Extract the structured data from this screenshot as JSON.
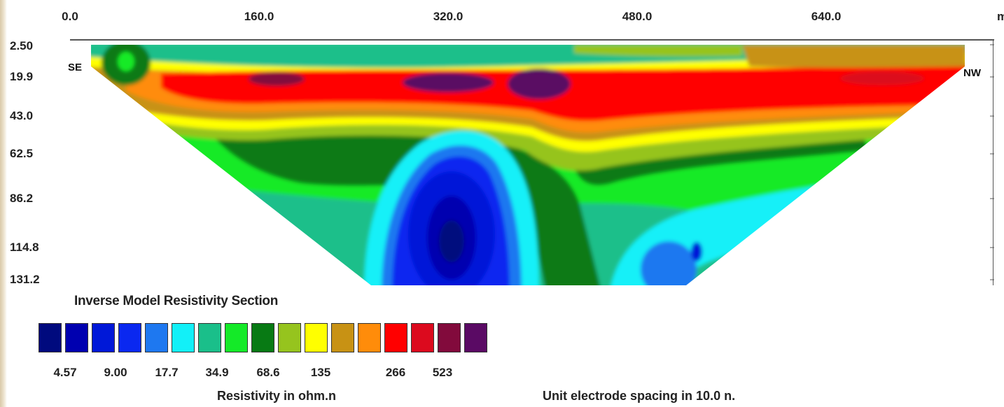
{
  "chart_data": {
    "type": "heatmap",
    "title": "Inverse Model Resistivity Section",
    "x_unit": "m",
    "x_ticks": [
      "0.0",
      "160.0",
      "320.0",
      "480.0",
      "640.0"
    ],
    "x_range": [
      0,
      725
    ],
    "y_ticks": [
      "2.50",
      "19.9",
      "43.0",
      "62.5",
      "86.2",
      "114.8",
      "131.2"
    ],
    "y_range": [
      2.5,
      131.2
    ],
    "profile_left_label": "SE",
    "profile_right_label": "NW",
    "colorbar_label": "Resistivity in ohm.n",
    "colorbar_values": [
      "4.57",
      "9.00",
      "17.7",
      "34.9",
      "68.6",
      "135",
      "266",
      "523"
    ],
    "colorbar_colors": [
      "#000a7e",
      "#0000b0",
      "#0018d8",
      "#0a28f0",
      "#1e78f0",
      "#12f0f8",
      "#1abf8a",
      "#14ea28",
      "#087a14",
      "#96c41e",
      "#ffff00",
      "#c89214",
      "#ff8c0a",
      "#ff0000",
      "#dc0a1e",
      "#820a3c",
      "#5a0a64"
    ],
    "spacing_note": "Unit electrode spacing in 10.0 n."
  }
}
